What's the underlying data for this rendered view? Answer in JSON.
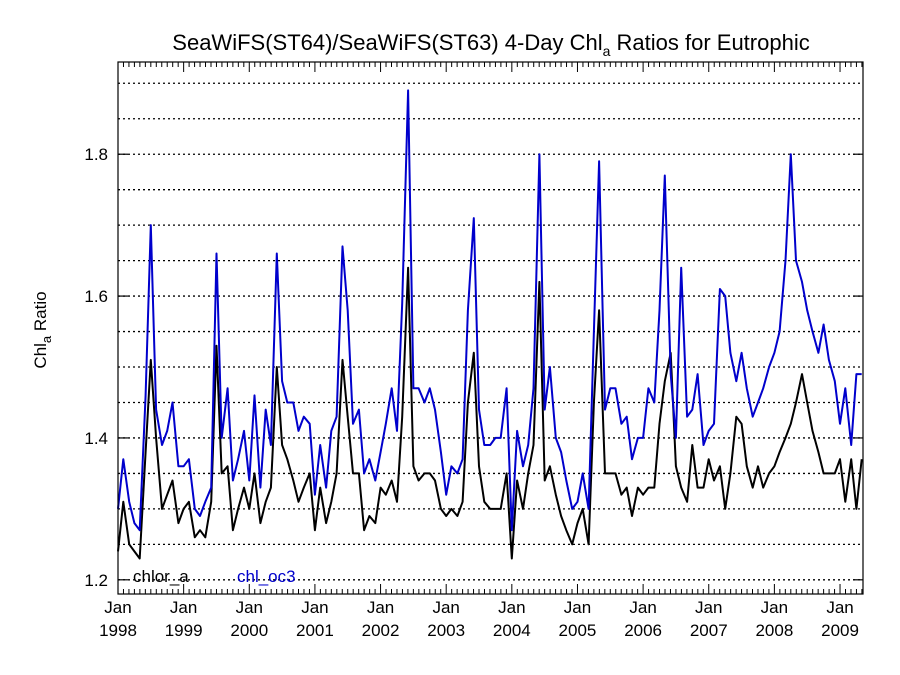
{
  "chart_data": {
    "type": "line",
    "title": "SeaWiFS(ST64)/SeaWiFS(ST63) 4-Day Chl",
    "title_sub": "a",
    "title_suffix": " Ratios for Eutrophic",
    "ylabel": "Chl",
    "ylabel_sub": "a",
    "ylabel_suffix": " Ratio",
    "xlim": [
      1998.0,
      2009.35
    ],
    "ylim": [
      1.18,
      1.93
    ],
    "x_ticks": [
      {
        "value": 1998,
        "month": "Jan",
        "year": "1998"
      },
      {
        "value": 1999,
        "month": "Jan",
        "year": "1999"
      },
      {
        "value": 2000,
        "month": "Jan",
        "year": "2000"
      },
      {
        "value": 2001,
        "month": "Jan",
        "year": "2001"
      },
      {
        "value": 2002,
        "month": "Jan",
        "year": "2002"
      },
      {
        "value": 2003,
        "month": "Jan",
        "year": "2003"
      },
      {
        "value": 2004,
        "month": "Jan",
        "year": "2004"
      },
      {
        "value": 2005,
        "month": "Jan",
        "year": "2005"
      },
      {
        "value": 2006,
        "month": "Jan",
        "year": "2006"
      },
      {
        "value": 2007,
        "month": "Jan",
        "year": "2007"
      },
      {
        "value": 2008,
        "month": "Jan",
        "year": "2008"
      },
      {
        "value": 2009,
        "month": "Jan",
        "year": "2009"
      }
    ],
    "y_ticks": [
      1.2,
      1.4,
      1.6,
      1.8
    ],
    "y_tick_labels": [
      "1.2",
      "1.4",
      "1.6",
      "1.8"
    ],
    "grid_y": [
      1.2,
      1.25,
      1.3,
      1.35,
      1.4,
      1.45,
      1.5,
      1.55,
      1.6,
      1.65,
      1.7,
      1.75,
      1.8,
      1.85,
      1.9
    ],
    "grid": true,
    "grid_style": "dotted horizontal",
    "legend_position": "bottom-left",
    "series": [
      {
        "name": "chlor_a",
        "color": "#000000",
        "x": [
          1998.0,
          1998.08,
          1998.17,
          1998.25,
          1998.33,
          1998.42,
          1998.5,
          1998.58,
          1998.67,
          1998.75,
          1998.83,
          1998.92,
          1999.0,
          1999.08,
          1999.17,
          1999.25,
          1999.33,
          1999.42,
          1999.5,
          1999.58,
          1999.67,
          1999.75,
          1999.83,
          1999.92,
          2000.0,
          2000.08,
          2000.17,
          2000.25,
          2000.33,
          2000.42,
          2000.5,
          2000.58,
          2000.67,
          2000.75,
          2000.83,
          2000.92,
          2001.0,
          2001.08,
          2001.17,
          2001.25,
          2001.33,
          2001.42,
          2001.5,
          2001.58,
          2001.67,
          2001.75,
          2001.83,
          2001.92,
          2002.0,
          2002.08,
          2002.17,
          2002.25,
          2002.33,
          2002.42,
          2002.5,
          2002.58,
          2002.67,
          2002.75,
          2002.83,
          2002.92,
          2003.0,
          2003.08,
          2003.17,
          2003.25,
          2003.33,
          2003.42,
          2003.5,
          2003.58,
          2003.67,
          2003.75,
          2003.83,
          2003.92,
          2004.0,
          2004.08,
          2004.17,
          2004.25,
          2004.33,
          2004.42,
          2004.5,
          2004.58,
          2004.67,
          2004.75,
          2004.83,
          2004.92,
          2005.0,
          2005.08,
          2005.17,
          2005.25,
          2005.33,
          2005.42,
          2005.5,
          2005.58,
          2005.67,
          2005.75,
          2005.83,
          2005.92,
          2006.0,
          2006.08,
          2006.17,
          2006.25,
          2006.33,
          2006.42,
          2006.5,
          2006.58,
          2006.67,
          2006.75,
          2006.83,
          2006.92,
          2007.0,
          2007.08,
          2007.17,
          2007.25,
          2007.33,
          2007.42,
          2007.5,
          2007.58,
          2007.67,
          2007.75,
          2007.83,
          2007.92,
          2008.0,
          2008.08,
          2008.17,
          2008.25,
          2008.33,
          2008.42,
          2008.5,
          2008.58,
          2008.67,
          2008.75,
          2008.83,
          2008.92,
          2009.0,
          2009.08,
          2009.17,
          2009.25,
          2009.33
        ],
        "y": [
          1.24,
          1.31,
          1.25,
          1.24,
          1.23,
          1.38,
          1.51,
          1.4,
          1.3,
          1.32,
          1.34,
          1.28,
          1.3,
          1.31,
          1.26,
          1.27,
          1.26,
          1.31,
          1.53,
          1.35,
          1.36,
          1.27,
          1.3,
          1.33,
          1.3,
          1.35,
          1.28,
          1.31,
          1.33,
          1.5,
          1.39,
          1.37,
          1.34,
          1.31,
          1.33,
          1.35,
          1.27,
          1.33,
          1.28,
          1.31,
          1.35,
          1.51,
          1.43,
          1.35,
          1.35,
          1.27,
          1.29,
          1.28,
          1.33,
          1.32,
          1.34,
          1.31,
          1.43,
          1.64,
          1.36,
          1.34,
          1.35,
          1.35,
          1.34,
          1.3,
          1.29,
          1.3,
          1.29,
          1.31,
          1.45,
          1.52,
          1.36,
          1.31,
          1.3,
          1.3,
          1.3,
          1.35,
          1.23,
          1.34,
          1.3,
          1.35,
          1.39,
          1.62,
          1.34,
          1.36,
          1.32,
          1.29,
          1.27,
          1.25,
          1.28,
          1.3,
          1.25,
          1.45,
          1.58,
          1.35,
          1.35,
          1.35,
          1.32,
          1.33,
          1.29,
          1.33,
          1.32,
          1.33,
          1.33,
          1.42,
          1.48,
          1.52,
          1.36,
          1.33,
          1.31,
          1.39,
          1.33,
          1.33,
          1.37,
          1.34,
          1.36,
          1.3,
          1.35,
          1.43,
          1.42,
          1.36,
          1.33,
          1.36,
          1.33,
          1.35,
          1.36,
          1.38,
          1.4,
          1.42,
          1.45,
          1.49,
          1.45,
          1.41,
          1.38,
          1.35,
          1.35,
          1.35,
          1.37,
          1.31,
          1.37,
          1.3,
          1.37
        ]
      },
      {
        "name": "chl_oc3",
        "color": "#0000cc",
        "x": [
          1998.0,
          1998.08,
          1998.17,
          1998.25,
          1998.33,
          1998.42,
          1998.5,
          1998.58,
          1998.67,
          1998.75,
          1998.83,
          1998.92,
          1999.0,
          1999.08,
          1999.17,
          1999.25,
          1999.33,
          1999.42,
          1999.5,
          1999.58,
          1999.67,
          1999.75,
          1999.83,
          1999.92,
          2000.0,
          2000.08,
          2000.17,
          2000.25,
          2000.33,
          2000.42,
          2000.5,
          2000.58,
          2000.67,
          2000.75,
          2000.83,
          2000.92,
          2001.0,
          2001.08,
          2001.17,
          2001.25,
          2001.33,
          2001.42,
          2001.5,
          2001.58,
          2001.67,
          2001.75,
          2001.83,
          2001.92,
          2002.0,
          2002.08,
          2002.17,
          2002.25,
          2002.33,
          2002.42,
          2002.5,
          2002.58,
          2002.67,
          2002.75,
          2002.83,
          2002.92,
          2003.0,
          2003.08,
          2003.17,
          2003.25,
          2003.33,
          2003.42,
          2003.5,
          2003.58,
          2003.67,
          2003.75,
          2003.83,
          2003.92,
          2004.0,
          2004.08,
          2004.17,
          2004.25,
          2004.33,
          2004.42,
          2004.5,
          2004.58,
          2004.67,
          2004.75,
          2004.83,
          2004.92,
          2005.0,
          2005.08,
          2005.17,
          2005.25,
          2005.33,
          2005.42,
          2005.5,
          2005.58,
          2005.67,
          2005.75,
          2005.83,
          2005.92,
          2006.0,
          2006.08,
          2006.17,
          2006.25,
          2006.33,
          2006.42,
          2006.5,
          2006.58,
          2006.67,
          2006.75,
          2006.83,
          2006.92,
          2007.0,
          2007.08,
          2007.17,
          2007.25,
          2007.33,
          2007.42,
          2007.5,
          2007.58,
          2007.67,
          2007.75,
          2007.83,
          2007.92,
          2008.0,
          2008.08,
          2008.17,
          2008.25,
          2008.33,
          2008.42,
          2008.5,
          2008.58,
          2008.67,
          2008.75,
          2008.83,
          2008.92,
          2009.0,
          2009.08,
          2009.17,
          2009.25,
          2009.33
        ],
        "y": [
          1.3,
          1.37,
          1.31,
          1.28,
          1.27,
          1.46,
          1.7,
          1.44,
          1.39,
          1.41,
          1.45,
          1.36,
          1.36,
          1.37,
          1.3,
          1.29,
          1.31,
          1.33,
          1.66,
          1.4,
          1.47,
          1.34,
          1.37,
          1.41,
          1.34,
          1.46,
          1.33,
          1.44,
          1.39,
          1.66,
          1.48,
          1.45,
          1.45,
          1.41,
          1.43,
          1.42,
          1.32,
          1.39,
          1.33,
          1.41,
          1.43,
          1.67,
          1.58,
          1.42,
          1.44,
          1.35,
          1.37,
          1.34,
          1.38,
          1.42,
          1.47,
          1.41,
          1.59,
          1.89,
          1.47,
          1.47,
          1.45,
          1.47,
          1.44,
          1.38,
          1.32,
          1.36,
          1.35,
          1.37,
          1.58,
          1.71,
          1.44,
          1.39,
          1.39,
          1.4,
          1.4,
          1.47,
          1.27,
          1.41,
          1.36,
          1.39,
          1.47,
          1.8,
          1.44,
          1.5,
          1.4,
          1.38,
          1.34,
          1.3,
          1.31,
          1.35,
          1.3,
          1.55,
          1.79,
          1.44,
          1.47,
          1.47,
          1.42,
          1.43,
          1.37,
          1.4,
          1.4,
          1.47,
          1.45,
          1.58,
          1.77,
          1.49,
          1.4,
          1.64,
          1.43,
          1.44,
          1.49,
          1.39,
          1.41,
          1.42,
          1.61,
          1.6,
          1.52,
          1.48,
          1.52,
          1.47,
          1.43,
          1.45,
          1.47,
          1.5,
          1.52,
          1.55,
          1.65,
          1.8,
          1.65,
          1.62,
          1.58,
          1.55,
          1.52,
          1.56,
          1.51,
          1.48,
          1.42,
          1.47,
          1.39,
          1.49,
          1.49
        ]
      }
    ]
  }
}
